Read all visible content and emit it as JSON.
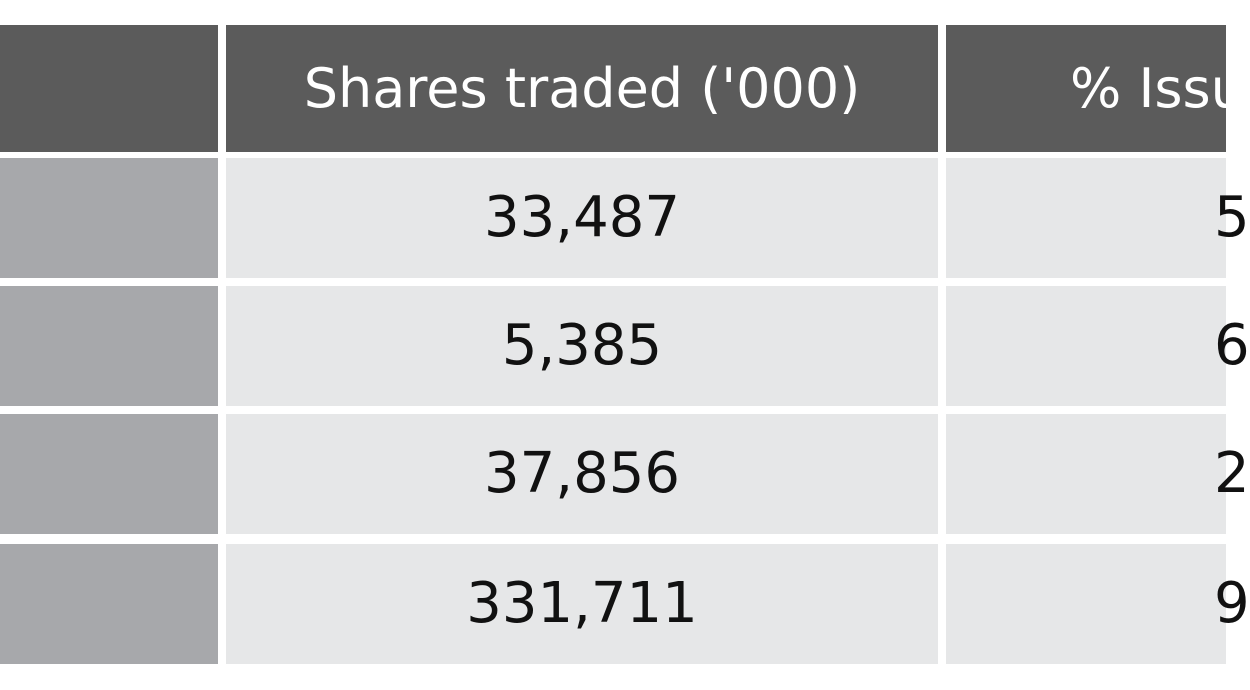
{
  "table": {
    "header": [
      "Shares traded ('000)",
      "% Issu"
    ],
    "rows": [
      [
        "33,487",
        "5"
      ],
      [
        "5,385",
        "6"
      ],
      [
        "37,856",
        "2"
      ],
      [
        "331,711",
        "9"
      ]
    ]
  }
}
